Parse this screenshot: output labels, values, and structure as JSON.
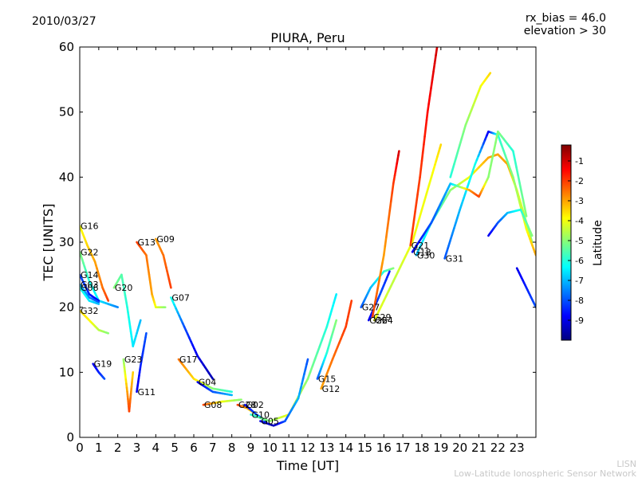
{
  "header": {
    "date": "2010/03/27",
    "rx_bias": "rx_bias = 46.0",
    "elevation": "elevation > 30"
  },
  "footer": {
    "line1": "LISN",
    "line2": "Low-Latitude Ionospheric Sensor Network"
  },
  "chart_data": {
    "type": "scatter",
    "title": "PIURA, Peru",
    "xlabel": "Time [UT]",
    "ylabel": "TEC [UNITS]",
    "xlim": [
      0,
      24
    ],
    "ylim": [
      0,
      60
    ],
    "xticks": [
      "0",
      "1",
      "2",
      "3",
      "4",
      "5",
      "6",
      "7",
      "8",
      "9",
      "10",
      "11",
      "12",
      "13",
      "14",
      "15",
      "16",
      "17",
      "18",
      "19",
      "20",
      "21",
      "22",
      "23"
    ],
    "yticks": [
      "0",
      "10",
      "20",
      "30",
      "40",
      "50",
      "60"
    ],
    "grid": false,
    "colorbar": {
      "label": "Latitude",
      "range": [
        -10,
        -0.2
      ],
      "ticks": [
        "-9",
        "-8",
        "-7",
        "-6",
        "-5",
        "-4",
        "-3",
        "-2",
        "-1"
      ],
      "tick_values": [
        -9,
        -8,
        -7,
        -6,
        -5,
        -4,
        -3,
        -2,
        -1
      ],
      "colormap": [
        "#00007f",
        "#0000ff",
        "#007fff",
        "#00ffff",
        "#7fff7f",
        "#ffff00",
        "#ff7f00",
        "#ff0000",
        "#7f0000"
      ]
    },
    "series": [
      {
        "name": "G16",
        "points": [
          [
            0,
            32.5,
            -4
          ],
          [
            0.4,
            29.5,
            -3.5
          ],
          [
            0.8,
            27,
            -3
          ],
          [
            1.2,
            23,
            -2.5
          ],
          [
            1.5,
            21,
            -2
          ]
        ]
      },
      {
        "name": "G22",
        "points": [
          [
            0,
            28.5,
            -5
          ],
          [
            0.5,
            24,
            -6
          ],
          [
            1,
            21,
            -6.5
          ],
          [
            1.5,
            20.5,
            -7
          ],
          [
            2,
            20,
            -7.5
          ]
        ]
      },
      {
        "name": "G14",
        "points": [
          [
            0,
            25,
            -8
          ],
          [
            0.5,
            22,
            -8.5
          ],
          [
            1,
            21,
            -8.8
          ]
        ]
      },
      {
        "name": "G03",
        "points": [
          [
            0,
            23.5,
            -7
          ],
          [
            0.5,
            21.5,
            -7.5
          ],
          [
            1,
            20.8,
            -8
          ]
        ]
      },
      {
        "name": "G06",
        "points": [
          [
            0,
            23,
            -6
          ],
          [
            0.5,
            21,
            -6.5
          ],
          [
            1,
            20.5,
            -7
          ]
        ]
      },
      {
        "name": "G32",
        "points": [
          [
            0,
            19.5,
            -3.5
          ],
          [
            0.5,
            18,
            -3.8
          ],
          [
            1,
            16.5,
            -4.5
          ],
          [
            1.5,
            16,
            -5
          ]
        ]
      },
      {
        "name": "G19",
        "points": [
          [
            0.7,
            11.3,
            -9
          ],
          [
            1,
            10,
            -8.5
          ],
          [
            1.3,
            9,
            -8
          ]
        ]
      },
      {
        "name": "G20",
        "points": [
          [
            1.8,
            23,
            -5
          ],
          [
            2.2,
            25,
            -5.5
          ],
          [
            2.5,
            20,
            -6
          ],
          [
            2.8,
            14,
            -6.5
          ],
          [
            3.2,
            18,
            -7
          ]
        ]
      },
      {
        "name": "G23",
        "points": [
          [
            2.3,
            12,
            -5
          ],
          [
            2.5,
            7,
            -3
          ],
          [
            2.6,
            4,
            -2
          ],
          [
            2.8,
            10,
            -3.5
          ]
        ]
      },
      {
        "name": "G11",
        "points": [
          [
            3,
            7,
            -9
          ],
          [
            3.2,
            11,
            -8.5
          ],
          [
            3.5,
            16,
            -8
          ]
        ]
      },
      {
        "name": "G13",
        "points": [
          [
            3,
            30,
            -2
          ],
          [
            3.5,
            28,
            -2.5
          ],
          [
            3.8,
            22,
            -3
          ],
          [
            4,
            20,
            -4
          ],
          [
            4.5,
            20,
            -5
          ]
        ]
      },
      {
        "name": "G09",
        "points": [
          [
            4,
            30.5,
            -3
          ],
          [
            4.4,
            28,
            -2.5
          ],
          [
            4.8,
            23,
            -2
          ]
        ]
      },
      {
        "name": "G07",
        "points": [
          [
            4.8,
            21.5,
            -6
          ],
          [
            5.5,
            17,
            -8
          ],
          [
            6.2,
            12.5,
            -9
          ],
          [
            7,
            9,
            -9.5
          ]
        ]
      },
      {
        "name": "G17",
        "points": [
          [
            5.2,
            12,
            -2.5
          ],
          [
            6,
            9,
            -3.5
          ],
          [
            7,
            7.5,
            -5
          ],
          [
            8,
            7,
            -6
          ]
        ]
      },
      {
        "name": "G08",
        "points": [
          [
            6.5,
            5,
            -2
          ],
          [
            7.5,
            5.5,
            -4
          ],
          [
            8.5,
            5.8,
            -5
          ]
        ]
      },
      {
        "name": "G04",
        "points": [
          [
            6.2,
            8.5,
            -9
          ],
          [
            7,
            7,
            -8
          ],
          [
            8,
            6.5,
            -7
          ]
        ]
      },
      {
        "name": "G28",
        "points": [
          [
            8.3,
            5,
            -2
          ],
          [
            8.8,
            4.5,
            -3
          ],
          [
            9.3,
            3.5,
            -4
          ]
        ]
      },
      {
        "name": "G02",
        "points": [
          [
            8.7,
            5,
            -9
          ],
          [
            9.3,
            3.5,
            -8
          ],
          [
            9.8,
            2.5,
            -7
          ]
        ]
      },
      {
        "name": "G10",
        "points": [
          [
            9,
            3.5,
            -6
          ],
          [
            10,
            2.5,
            -5
          ],
          [
            11,
            3.5,
            -4
          ],
          [
            12,
            9,
            -5
          ],
          [
            13,
            17,
            -6
          ],
          [
            13.5,
            22,
            -6.5
          ]
        ]
      },
      {
        "name": "G05",
        "points": [
          [
            9.5,
            2.5,
            -9
          ],
          [
            10.2,
            1.8,
            -9.5
          ],
          [
            10.8,
            2.5,
            -8
          ],
          [
            11.5,
            6,
            -7
          ],
          [
            12,
            12,
            -8
          ]
        ]
      },
      {
        "name": "G15",
        "points": [
          [
            12.5,
            9,
            -8
          ],
          [
            13,
            13,
            -6
          ],
          [
            13.5,
            18,
            -5
          ]
        ]
      },
      {
        "name": "G12",
        "points": [
          [
            12.7,
            7.5,
            -3
          ],
          [
            13.3,
            12,
            -2.5
          ],
          [
            14,
            17,
            -2
          ],
          [
            14.3,
            21,
            -2
          ]
        ]
      },
      {
        "name": "G27",
        "points": [
          [
            14.8,
            20,
            -8
          ],
          [
            15.3,
            23,
            -7
          ],
          [
            16,
            25.5,
            -6
          ],
          [
            16.5,
            26,
            -5
          ]
        ]
      },
      {
        "name": "G26",
        "points": [
          [
            15.2,
            18,
            -9
          ],
          [
            15.8,
            22,
            -8
          ],
          [
            16.3,
            25.5,
            -8.5
          ]
        ]
      },
      {
        "name": "G29",
        "points": [
          [
            15.4,
            18.5,
            -2
          ],
          [
            16,
            28,
            -3
          ],
          [
            16.5,
            39,
            -2
          ],
          [
            16.8,
            44,
            -1
          ]
        ]
      },
      {
        "name": "G24",
        "points": [
          [
            15.5,
            18,
            -4
          ],
          [
            16.5,
            24,
            -4.5
          ],
          [
            17.5,
            30,
            -4
          ],
          [
            18.5,
            40,
            -4
          ],
          [
            19,
            45,
            -3.5
          ]
        ]
      },
      {
        "name": "G21",
        "points": [
          [
            17.4,
            29.5,
            -2
          ],
          [
            17.9,
            40,
            -2
          ],
          [
            18.3,
            50,
            -1.5
          ],
          [
            18.8,
            60,
            -1
          ]
        ]
      },
      {
        "name": "G30",
        "points": [
          [
            17.7,
            28,
            -7
          ],
          [
            18.5,
            33,
            -6
          ],
          [
            19.5,
            38,
            -5
          ],
          [
            20.5,
            40,
            -4
          ],
          [
            21.5,
            43,
            -3
          ],
          [
            22,
            43.5,
            -3
          ],
          [
            22.5,
            42,
            -3
          ],
          [
            23,
            38,
            -4
          ],
          [
            23.8,
            30,
            -5
          ]
        ]
      },
      {
        "name": "G31",
        "points": [
          [
            19.2,
            27.5,
            -8
          ],
          [
            20,
            35,
            -7
          ],
          [
            20.8,
            42,
            -6
          ],
          [
            21.5,
            47,
            -9
          ],
          [
            22,
            46.5,
            -6
          ],
          [
            22.8,
            40,
            -5
          ],
          [
            23.5,
            32,
            -4
          ],
          [
            24,
            28,
            -3
          ]
        ]
      },
      {
        "name": "G18",
        "points": [
          [
            17.5,
            28.5,
            -9
          ],
          [
            18.5,
            33,
            -8
          ],
          [
            19.5,
            39,
            -7
          ],
          [
            20.5,
            38,
            -3
          ],
          [
            21,
            37,
            -2
          ],
          [
            21.5,
            40,
            -5
          ],
          [
            22,
            47,
            -5
          ],
          [
            22.8,
            44,
            -6
          ],
          [
            23.5,
            34,
            -5
          ]
        ]
      },
      {
        "name": "",
        "points": [
          [
            21.5,
            31,
            -9
          ],
          [
            22,
            33,
            -8
          ],
          [
            22.5,
            34.5,
            -7
          ],
          [
            23.2,
            35,
            -6
          ],
          [
            23.8,
            31,
            -5
          ]
        ]
      },
      {
        "name": "",
        "points": [
          [
            19.5,
            40,
            -6
          ],
          [
            20.3,
            48,
            -5
          ],
          [
            21.1,
            54,
            -4
          ],
          [
            21.6,
            56,
            -3.5
          ]
        ]
      },
      {
        "name": "",
        "points": [
          [
            23,
            26,
            -9
          ],
          [
            23.5,
            23,
            -8.5
          ],
          [
            24,
            20,
            -8
          ]
        ]
      }
    ]
  }
}
